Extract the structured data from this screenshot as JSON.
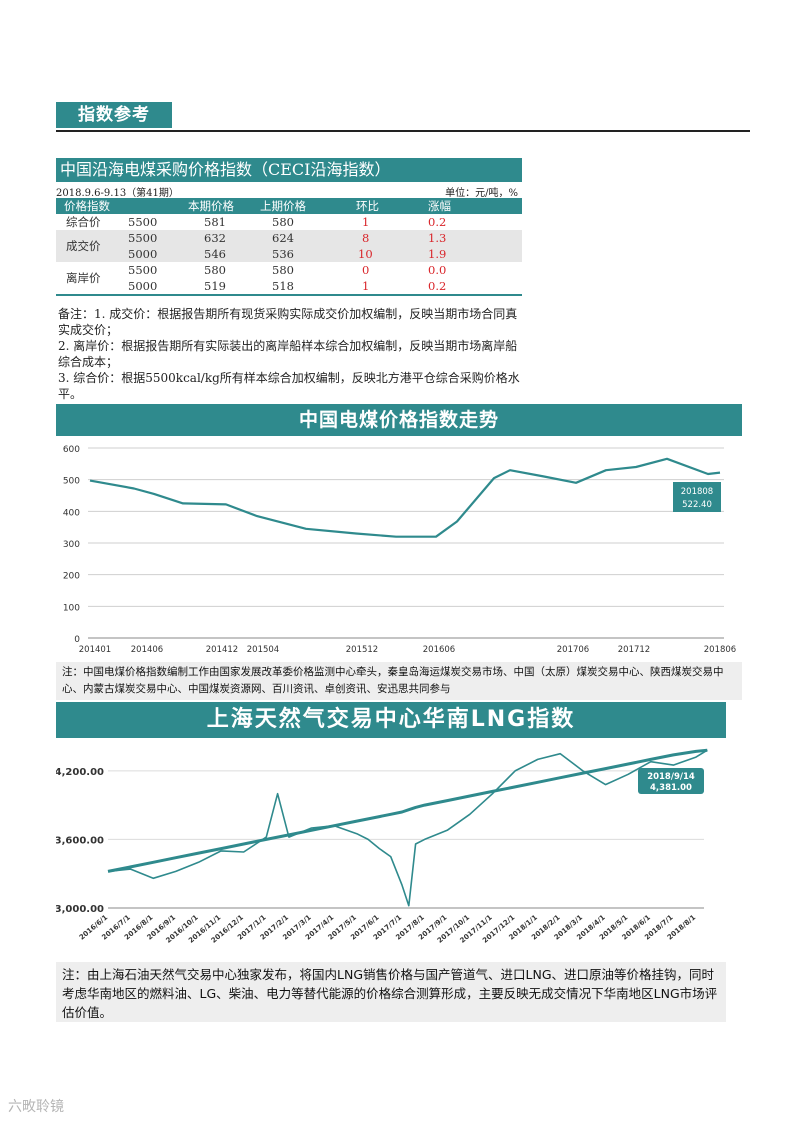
{
  "section": {
    "title": "指数参考"
  },
  "ceci": {
    "title": "中国沿海电煤采购价格指数（CECI沿海指数）",
    "period": "2018.9.6-9.13（第41期）",
    "unit": "单位：元/吨，%",
    "headers": [
      "价格指数",
      "",
      "本期价格",
      "上期价格",
      "环比",
      "涨幅"
    ],
    "rows": [
      [
        "综合价",
        "5500",
        "581",
        "580",
        "1",
        "0.2"
      ],
      [
        "成交价",
        "5500",
        "632",
        "624",
        "8",
        "1.3"
      ],
      [
        "",
        "5000",
        "546",
        "536",
        "10",
        "1.9"
      ],
      [
        "离岸价",
        "5500",
        "580",
        "580",
        "0",
        "0.0"
      ],
      [
        "",
        "5000",
        "519",
        "518",
        "1",
        "0.2"
      ]
    ],
    "notes": [
      "备注：1. 成交价：根据报告期所有现货采购实际成交价加权编制，反映当期市场合同真实成交价；",
      "2. 离岸价：根据报告期所有实际装出的离岸船样本综合加权编制，反映当期市场离岸船综合成本；",
      "3. 综合价：根据5500kcal/kg所有样本综合加权编制，反映北方港平仓综合采购价格水平。"
    ]
  },
  "chart1": {
    "title": "中国电煤价格指数走势",
    "note": "注：中国电煤价格指数编制工作由国家发展改革委价格监测中心牵头，秦皇岛海运煤炭交易市场、中国（太原）煤炭交易中心、陕西煤炭交易中心、内蒙古煤炭交易中心、中国煤炭资源网、百川资讯、卓创资讯、安迅思共同参与",
    "callout_date": "201808",
    "callout_value": "522.40"
  },
  "chart2": {
    "title": "上海天然气交易中心华南LNG指数",
    "note": "注：由上海石油天然气交易中心独家发布，将国内LNG销售价格与国产管道气、进口LNG、进口原油等价格挂钩，同时考虑华南地区的燃料油、LG、柴油、电力等替代能源的价格综合测算形成，主要反映无成交情况下华南地区LNG市场评估价值。",
    "callout_date": "2018/9/14",
    "callout_value": "4,381.00"
  },
  "watermark": "六畋聆镜",
  "chart_data": [
    {
      "type": "line",
      "title": "中国电煤价格指数走势",
      "ylim": [
        0,
        600
      ],
      "yticks": [
        0,
        100,
        200,
        300,
        400,
        500,
        600
      ],
      "xticks": [
        "201401",
        "201406",
        "201412",
        "201504",
        "201512",
        "201606",
        "201706",
        "201712",
        "201806"
      ],
      "x": [
        "201401",
        "201404",
        "201406",
        "201409",
        "201412",
        "201504",
        "201508",
        "201512",
        "201603",
        "201606",
        "201608",
        "201610",
        "201612",
        "201703",
        "201706",
        "201709",
        "201712",
        "201803",
        "201806",
        "201808"
      ],
      "series": [
        {
          "values": [
            497,
            472,
            455,
            425,
            422,
            385,
            345,
            330,
            320,
            320,
            368,
            505,
            530,
            510,
            490,
            530,
            540,
            566,
            518,
            522.4
          ]
        }
      ],
      "grid": true,
      "color": "#2f8a8d"
    },
    {
      "type": "line",
      "title": "上海天然气交易中心华南LNG指数",
      "ylim": [
        3000,
        4400
      ],
      "yticks": [
        "3,000.00",
        "3,600.00",
        "4,200.00"
      ],
      "xticks": [
        "2016/6/1",
        "2016/7/1",
        "2016/8/1",
        "2016/9/1",
        "2016/10/1",
        "2016/11/1",
        "2016/12/1",
        "2017/1/1",
        "2017/2/1",
        "2017/3/1",
        "2017/4/1",
        "2017/5/1",
        "2017/6/1",
        "2017/7/1",
        "2017/8/1",
        "2017/9/1",
        "2017/10/1",
        "2017/11/1",
        "2017/12/1",
        "2018/1/1",
        "2018/2/1",
        "2018/3/1",
        "2018/4/1",
        "2018/5/1",
        "2018/6/1",
        "2018/7/1",
        "2018/8/1"
      ],
      "x_index": [
        0,
        1,
        2,
        3,
        4,
        5,
        6,
        7,
        7.5,
        8,
        9,
        10,
        11,
        11.5,
        12,
        12.5,
        13,
        13.3,
        13.6,
        14,
        15,
        16,
        17,
        18,
        19,
        20,
        21,
        22,
        23,
        24,
        25,
        26,
        26.5
      ],
      "series": [
        {
          "values": [
            3320,
            3340,
            3260,
            3320,
            3400,
            3500,
            3490,
            3620,
            4000,
            3620,
            3700,
            3720,
            3650,
            3600,
            3520,
            3450,
            3200,
            3020,
            3560,
            3600,
            3680,
            3820,
            4000,
            4200,
            4300,
            4350,
            4200,
            4080,
            4170,
            4280,
            4250,
            4320,
            4381
          ]
        },
        {
          "values": [
            3320,
            3360,
            3400,
            3440,
            3480,
            3520,
            3560,
            3600,
            3620,
            3640,
            3680,
            3720,
            3760,
            3780,
            3800,
            3820,
            3840,
            3860,
            3880,
            3900,
            3940,
            3980,
            4020,
            4060,
            4100,
            4140,
            4180,
            4220,
            4260,
            4300,
            4340,
            4370,
            4381
          ]
        }
      ],
      "color": "#2f8a8d"
    }
  ]
}
